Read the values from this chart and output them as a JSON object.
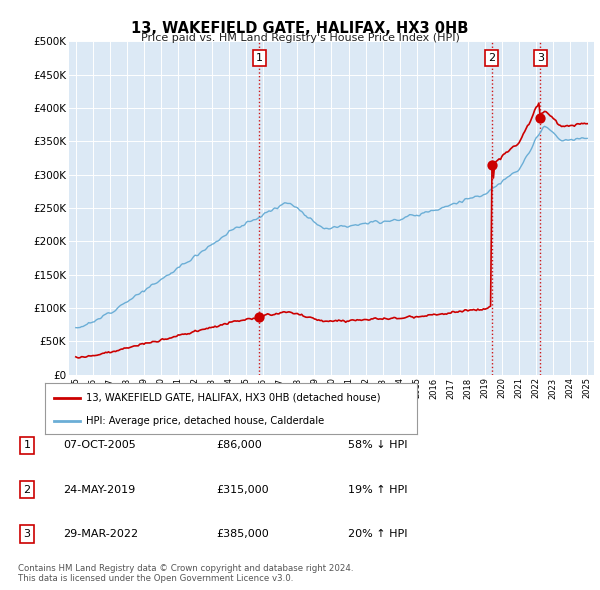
{
  "title": "13, WAKEFIELD GATE, HALIFAX, HX3 0HB",
  "subtitle": "Price paid vs. HM Land Registry's House Price Index (HPI)",
  "ylim": [
    0,
    500000
  ],
  "yticks": [
    0,
    50000,
    100000,
    150000,
    200000,
    250000,
    300000,
    350000,
    400000,
    450000,
    500000
  ],
  "ytick_labels": [
    "£0",
    "£50K",
    "£100K",
    "£150K",
    "£200K",
    "£250K",
    "£300K",
    "£350K",
    "£400K",
    "£450K",
    "£500K"
  ],
  "hpi_color": "#6baed6",
  "price_color": "#cc0000",
  "vline_color": "#cc0000",
  "vline_style": ":",
  "sale_dates": [
    2005.77,
    2019.39,
    2022.25
  ],
  "sale_prices": [
    86000,
    315000,
    385000
  ],
  "sale_labels": [
    "1",
    "2",
    "3"
  ],
  "legend_label_price": "13, WAKEFIELD GATE, HALIFAX, HX3 0HB (detached house)",
  "legend_label_hpi": "HPI: Average price, detached house, Calderdale",
  "table_rows": [
    [
      "1",
      "07-OCT-2005",
      "£86,000",
      "58% ↓ HPI"
    ],
    [
      "2",
      "24-MAY-2019",
      "£315,000",
      "19% ↑ HPI"
    ],
    [
      "3",
      "29-MAR-2022",
      "£385,000",
      "20% ↑ HPI"
    ]
  ],
  "footnote": "Contains HM Land Registry data © Crown copyright and database right 2024.\nThis data is licensed under the Open Government Licence v3.0.",
  "background_color": "#ffffff",
  "plot_bg_color": "#dce9f5"
}
